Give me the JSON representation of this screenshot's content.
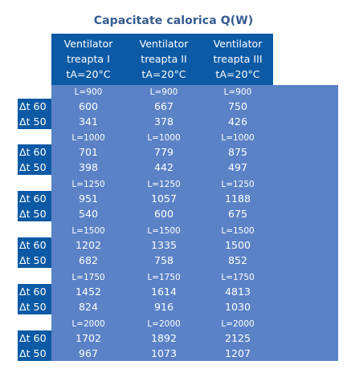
{
  "title": "Capacitate calorica Q(W)",
  "colors": {
    "header_bg": "#0c5aa5",
    "sheet_bg": "#5b82c6",
    "title": "#355b8f"
  },
  "columns": [
    {
      "line1": "Ventilator",
      "line2": "treapta I",
      "line3": "tA=20°C"
    },
    {
      "line1": "Ventilator",
      "line2": "treapta II",
      "line3": "tA=20°C"
    },
    {
      "line1": "Ventilator",
      "line2": "treapta III",
      "line3": "tA=20°C"
    }
  ],
  "groups": [
    {
      "lengths": [
        "L=900",
        "L=900",
        "L=900"
      ],
      "rows": [
        {
          "label": "Δt 60",
          "values": [
            "600",
            "667",
            "750"
          ]
        },
        {
          "label": "Δt 50",
          "values": [
            "341",
            "378",
            "426"
          ]
        }
      ]
    },
    {
      "lengths": [
        "L=1000",
        "L=1000",
        "L=1000"
      ],
      "rows": [
        {
          "label": "Δt 60",
          "values": [
            "701",
            "779",
            "875"
          ]
        },
        {
          "label": "Δt 50",
          "values": [
            "398",
            "442",
            "497"
          ]
        }
      ]
    },
    {
      "lengths": [
        "L=1250",
        "L=1250",
        "L=1250"
      ],
      "rows": [
        {
          "label": "Δt 60",
          "values": [
            "951",
            "1057",
            "1188"
          ]
        },
        {
          "label": "Δt 50",
          "values": [
            "540",
            "600",
            "675"
          ]
        }
      ]
    },
    {
      "lengths": [
        "L=1500",
        "L=1500",
        "L=1500"
      ],
      "rows": [
        {
          "label": "Δt 60",
          "values": [
            "1202",
            "1335",
            "1500"
          ]
        },
        {
          "label": "Δt 50",
          "values": [
            "682",
            "758",
            "852"
          ]
        }
      ]
    },
    {
      "lengths": [
        "L=1750",
        "L=1750",
        "L=1750"
      ],
      "rows": [
        {
          "label": "Δt 60",
          "values": [
            "1452",
            "1614",
            "4813"
          ]
        },
        {
          "label": "Δt 50",
          "values": [
            "824",
            "916",
            "1030"
          ]
        }
      ]
    },
    {
      "lengths": [
        "L=2000",
        "L=2000",
        "L=2000"
      ],
      "rows": [
        {
          "label": "Δt 60",
          "values": [
            "1702",
            "1892",
            "2125"
          ]
        },
        {
          "label": "Δt 50",
          "values": [
            "967",
            "1073",
            "1207"
          ]
        }
      ]
    }
  ]
}
